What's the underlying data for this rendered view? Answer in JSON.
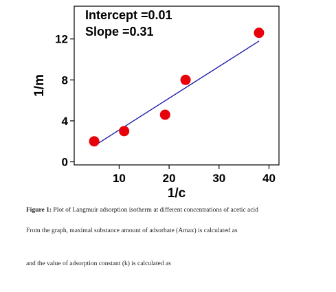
{
  "chart_data": {
    "type": "scatter",
    "x": [
      5,
      11,
      19.2,
      23.3,
      38
    ],
    "y": [
      2,
      3,
      4.6,
      8,
      12.6
    ],
    "fit_line": {
      "intercept": 0.01,
      "slope": 0.31,
      "x_range": [
        5,
        38
      ]
    },
    "xlabel": "1/c",
    "ylabel": "1/m",
    "xlim": [
      1,
      42
    ],
    "ylim": [
      -0.3,
      15.2
    ],
    "xticks": [
      10,
      20,
      30,
      40
    ],
    "yticks": [
      0,
      4,
      8,
      12
    ],
    "annotations": [
      "Intercept =0.01",
      "Slope =0.31"
    ],
    "point_color": "#e8000b",
    "line_color": "#1a1aa8",
    "grid": false,
    "legend": "none"
  },
  "document": {
    "caption_label": "Figure 1:",
    "caption_text": "Plot of Langmuir adsorption isotherm at different concentrations of acetic acid",
    "line1": "From the graph, maximal substance amount of adsorbate (Amax) is calculated as",
    "line2": "and the value of adsorption constant (k) is calculated as"
  }
}
